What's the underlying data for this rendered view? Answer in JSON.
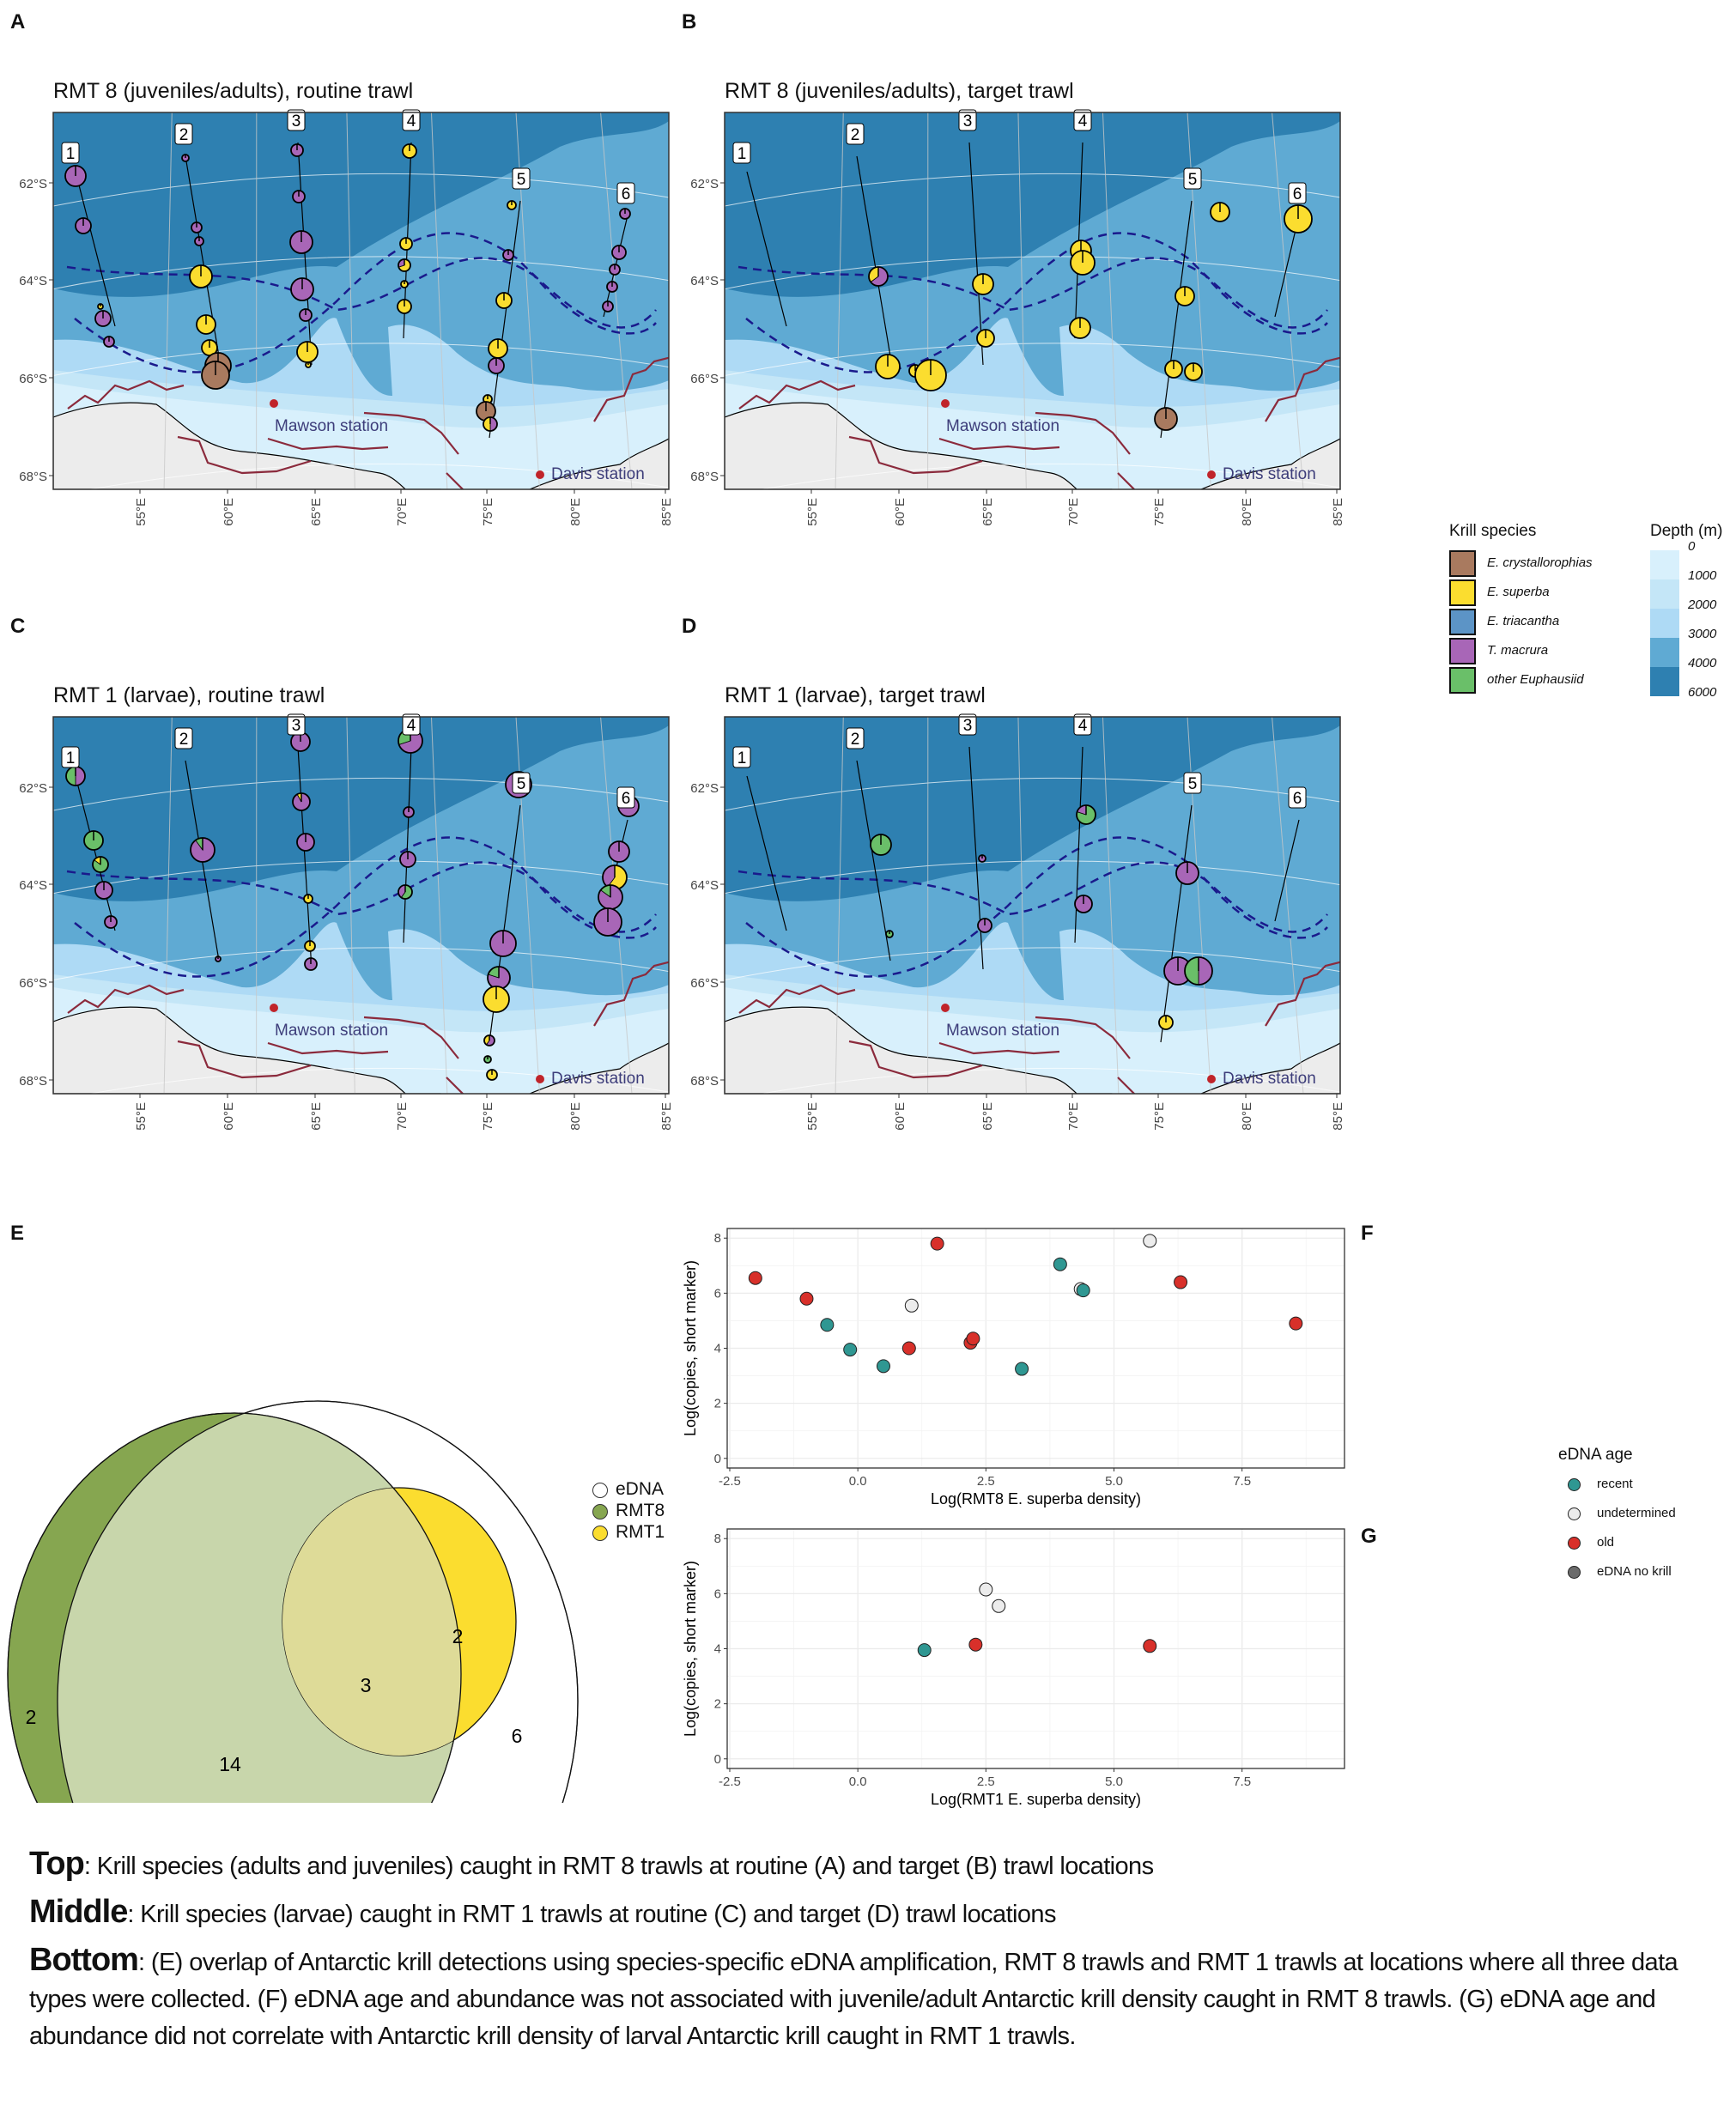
{
  "maps": {
    "panels": [
      {
        "letter": "A",
        "title": "RMT 8 (juveniles/adults), routine trawl"
      },
      {
        "letter": "B",
        "title": "RMT 8 (juveniles/adults), target trawl"
      },
      {
        "letter": "C",
        "title": "RMT 1 (larvae), routine trawl"
      },
      {
        "letter": "D",
        "title": "RMT 1 (larvae), target trawl"
      }
    ],
    "lat_labels": [
      "62°S",
      "64°S",
      "66°S",
      "68°S"
    ],
    "lon_labels": [
      "55°E",
      "60°E",
      "65°E",
      "70°E",
      "75°E",
      "80°E",
      "85°E"
    ],
    "transect_labels": [
      "1",
      "2",
      "3",
      "4",
      "5",
      "6"
    ],
    "station_labels": {
      "mawson": "Mawson station",
      "davis": "Davis station"
    },
    "colors": {
      "depth_0_1000": "#d8f0fc",
      "depth_1000_2000": "#c4e6f7",
      "depth_2000_3000": "#aedaf5",
      "depth_3000_4000": "#5faad3",
      "depth_4000_6000": "#2e80b1",
      "land": "#ececec",
      "station": "#c0242a",
      "station_text": "#3d3d7a",
      "front_line": "#1a1a8c",
      "shelf_line": "#8b2a3c"
    }
  },
  "legends": {
    "krill_species": {
      "title": "Krill species",
      "items": [
        {
          "label": "E. crystallorophias",
          "color": "#a97a5f"
        },
        {
          "label": "E. superba",
          "color": "#fbdd2f"
        },
        {
          "label": "E. triacantha",
          "color": "#5c94c6"
        },
        {
          "label": "T. macrura",
          "color": "#a866b7"
        },
        {
          "label": "other Euphausiid",
          "color": "#6abf69"
        }
      ]
    },
    "depth": {
      "title": "Depth (m)",
      "ticks": [
        "0",
        "1000",
        "2000",
        "3000",
        "4000",
        "6000"
      ]
    },
    "venn": {
      "items": [
        {
          "label": "eDNA",
          "color": "#ffffff"
        },
        {
          "label": "RMT8",
          "color": "#86a650"
        },
        {
          "label": "RMT1",
          "color": "#fbdd2f"
        }
      ]
    },
    "edna_age": {
      "title": "eDNA age",
      "items": [
        {
          "label": "recent",
          "color": "#2f9792"
        },
        {
          "label": "undetermined",
          "color": "#ececec"
        },
        {
          "label": "old",
          "color": "#d8302a"
        },
        {
          "label": "eDNA no krill",
          "color": "#6b6b6b"
        }
      ]
    }
  },
  "chart_data": [
    {
      "panel": "E",
      "type": "venn",
      "sets": [
        "eDNA",
        "RMT8",
        "RMT1"
      ],
      "regions": [
        {
          "sets": [
            "RMT8"
          ],
          "value": 2
        },
        {
          "sets": [
            "eDNA",
            "RMT8"
          ],
          "value": 14
        },
        {
          "sets": [
            "eDNA",
            "RMT8",
            "RMT1"
          ],
          "value": 3
        },
        {
          "sets": [
            "eDNA",
            "RMT1"
          ],
          "value": 2
        },
        {
          "sets": [
            "eDNA"
          ],
          "value": 6
        }
      ],
      "labels": {
        "rmt8_only": "2",
        "edna_rmt8": "14",
        "all_three": "3",
        "edna_rmt1": "2",
        "edna_only": "6"
      }
    },
    {
      "panel": "F",
      "type": "scatter",
      "xlabel": "Log(RMT8 E. superba density)",
      "ylabel": "Log(copies, short marker)",
      "xlim": [
        -2.55,
        9.5
      ],
      "ylim": [
        -0.35,
        8.35
      ],
      "xticks": [
        "-2.5",
        "0.0",
        "2.5",
        "5.0",
        "7.5"
      ],
      "xtick_values": [
        -2.5,
        0,
        2.5,
        5,
        7.5
      ],
      "yticks": [
        "0",
        "2",
        "4",
        "6",
        "8"
      ],
      "ytick_values": [
        0,
        2,
        4,
        6,
        8
      ],
      "grid": true,
      "points": [
        {
          "x": -2.0,
          "y": 6.55,
          "group": "old"
        },
        {
          "x": -1.0,
          "y": 5.8,
          "group": "old"
        },
        {
          "x": -0.6,
          "y": 4.85,
          "group": "recent"
        },
        {
          "x": -0.15,
          "y": 3.95,
          "group": "recent"
        },
        {
          "x": 0.5,
          "y": 3.35,
          "group": "recent"
        },
        {
          "x": 1.0,
          "y": 4.0,
          "group": "old"
        },
        {
          "x": 1.05,
          "y": 5.55,
          "group": "undetermined"
        },
        {
          "x": 1.55,
          "y": 7.8,
          "group": "old"
        },
        {
          "x": 2.2,
          "y": 4.2,
          "group": "old"
        },
        {
          "x": 2.25,
          "y": 4.35,
          "group": "old"
        },
        {
          "x": 3.2,
          "y": 3.25,
          "group": "recent"
        },
        {
          "x": 3.95,
          "y": 7.05,
          "group": "recent"
        },
        {
          "x": 4.35,
          "y": 6.15,
          "group": "undetermined"
        },
        {
          "x": 4.4,
          "y": 6.1,
          "group": "recent"
        },
        {
          "x": 5.7,
          "y": 7.9,
          "group": "undetermined"
        },
        {
          "x": 6.3,
          "y": 6.4,
          "group": "old"
        },
        {
          "x": 8.55,
          "y": 4.9,
          "group": "old"
        }
      ]
    },
    {
      "panel": "G",
      "type": "scatter",
      "xlabel": "Log(RMT1 E. superba density)",
      "ylabel": "Log(copies, short marker)",
      "xlim": [
        -2.55,
        9.5
      ],
      "ylim": [
        -0.35,
        8.35
      ],
      "xticks": [
        "-2.5",
        "0.0",
        "2.5",
        "5.0",
        "7.5"
      ],
      "xtick_values": [
        -2.5,
        0,
        2.5,
        5,
        7.5
      ],
      "yticks": [
        "0",
        "2",
        "4",
        "6",
        "8"
      ],
      "ytick_values": [
        0,
        2,
        4,
        6,
        8
      ],
      "grid": true,
      "points": [
        {
          "x": 1.3,
          "y": 3.95,
          "group": "recent"
        },
        {
          "x": 2.3,
          "y": 4.15,
          "group": "old"
        },
        {
          "x": 2.5,
          "y": 6.15,
          "group": "undetermined"
        },
        {
          "x": 2.75,
          "y": 5.55,
          "group": "undetermined"
        },
        {
          "x": 5.7,
          "y": 4.1,
          "group": "old"
        }
      ]
    }
  ],
  "caption": {
    "top_label": "Top",
    "top_text": ": Krill species (adults and juveniles) caught in RMT 8 trawls at routine (A) and target (B) trawl locations",
    "middle_label": "Middle",
    "middle_text": ": Krill species (larvae) caught in RMT 1 trawls at routine (C) and target (D) trawl locations",
    "bottom_label": "Bottom",
    "bottom_text": ": (E) overlap of Antarctic krill detections using species-specific eDNA amplification, RMT 8 trawls and RMT 1 trawls at locations where all three data types were collected. (F) eDNA age and abundance was not associated with juvenile/adult Antarctic krill density caught in RMT 8 trawls. (G) eDNA age and abundance did not correlate with Antarctic krill density of larval Antarctic krill caught in RMT 1 trawls."
  }
}
